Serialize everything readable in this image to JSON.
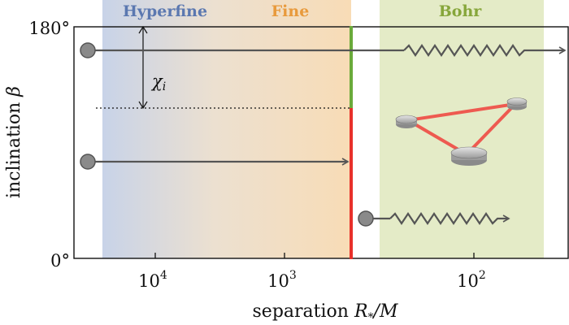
{
  "regions": {
    "hyperfine": {
      "label": "Hyperfine",
      "color": "#5b78b0"
    },
    "fine": {
      "label": "Fine",
      "color": "#e89a3c"
    },
    "bohr": {
      "label": "Bohr",
      "color": "#86a63a"
    }
  },
  "axes": {
    "y_title_text": "inclination ",
    "y_title_symbol": "β",
    "x_title_text": "separation ",
    "x_title_symbol_main": "R",
    "x_title_symbol_sub": "*",
    "x_title_symbol_rest": "/M",
    "y_ticks": [
      "180°",
      "0°"
    ],
    "x_ticks": [
      {
        "base": "10",
        "exp": "4"
      },
      {
        "base": "10",
        "exp": "3"
      },
      {
        "base": "10",
        "exp": "2"
      }
    ]
  },
  "annotation": {
    "symbol": "χ",
    "subscript": "i"
  },
  "colors": {
    "stable_line": "#6aaa3a",
    "unstable_line": "#e8302a",
    "trajectory": "#555555",
    "bohr_bg": "#e4ebc7",
    "triangle_link": "#ee5a50"
  }
}
